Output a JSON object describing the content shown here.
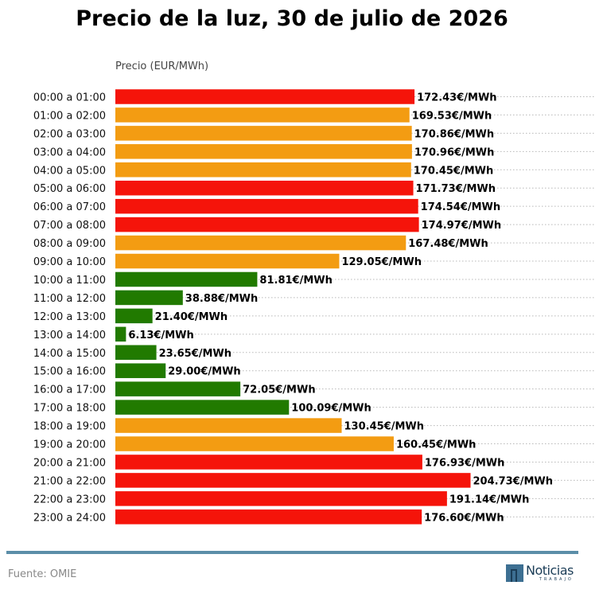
{
  "chart_data": {
    "type": "bar",
    "orientation": "horizontal",
    "title": "Precio de la luz, 30 de julio de 2026",
    "xlabel": "Precio (EUR/MWh)",
    "ylabel": "",
    "value_suffix": "€/MWh",
    "xlim": [
      0,
      210
    ],
    "grid": true,
    "categories": [
      "00:00 a 01:00",
      "01:00 a 02:00",
      "02:00 a 03:00",
      "03:00 a 04:00",
      "04:00 a 05:00",
      "05:00 a 06:00",
      "06:00 a 07:00",
      "07:00 a 08:00",
      "08:00 a 09:00",
      "09:00 a 10:00",
      "10:00 a 11:00",
      "11:00 a 12:00",
      "12:00 a 13:00",
      "13:00 a 14:00",
      "14:00 a 15:00",
      "15:00 a 16:00",
      "16:00 a 17:00",
      "17:00 a 18:00",
      "18:00 a 19:00",
      "19:00 a 20:00",
      "20:00 a 21:00",
      "21:00 a 22:00",
      "22:00 a 23:00",
      "23:00 a 24:00"
    ],
    "values": [
      172.43,
      169.53,
      170.86,
      170.96,
      170.45,
      171.73,
      174.54,
      174.97,
      167.48,
      129.05,
      81.81,
      38.88,
      21.4,
      6.13,
      23.65,
      29.0,
      72.05,
      100.09,
      130.45,
      160.45,
      176.93,
      204.73,
      191.14,
      176.6
    ],
    "value_labels": [
      "172.43€/MWh",
      "169.53€/MWh",
      "170.86€/MWh",
      "170.96€/MWh",
      "170.45€/MWh",
      "171.73€/MWh",
      "174.54€/MWh",
      "174.97€/MWh",
      "167.48€/MWh",
      "129.05€/MWh",
      "81.81€/MWh",
      "38.88€/MWh",
      "21.40€/MWh",
      "6.13€/MWh",
      "23.65€/MWh",
      "29.00€/MWh",
      "72.05€/MWh",
      "100.09€/MWh",
      "130.45€/MWh",
      "160.45€/MWh",
      "176.93€/MWh",
      "204.73€/MWh",
      "191.14€/MWh",
      "176.60€/MWh"
    ],
    "bar_levels": [
      "high",
      "mid",
      "mid",
      "mid",
      "mid",
      "high",
      "high",
      "high",
      "mid",
      "mid",
      "low",
      "low",
      "low",
      "low",
      "low",
      "low",
      "low",
      "low",
      "mid",
      "mid",
      "high",
      "high",
      "high",
      "high"
    ],
    "colors": {
      "high": "#f5140a",
      "mid": "#f39c12",
      "low": "#217a00"
    }
  },
  "footer": {
    "source": "Fuente: OMIE",
    "logo_text": "Noticias",
    "logo_subtext": "TRABAJO"
  }
}
